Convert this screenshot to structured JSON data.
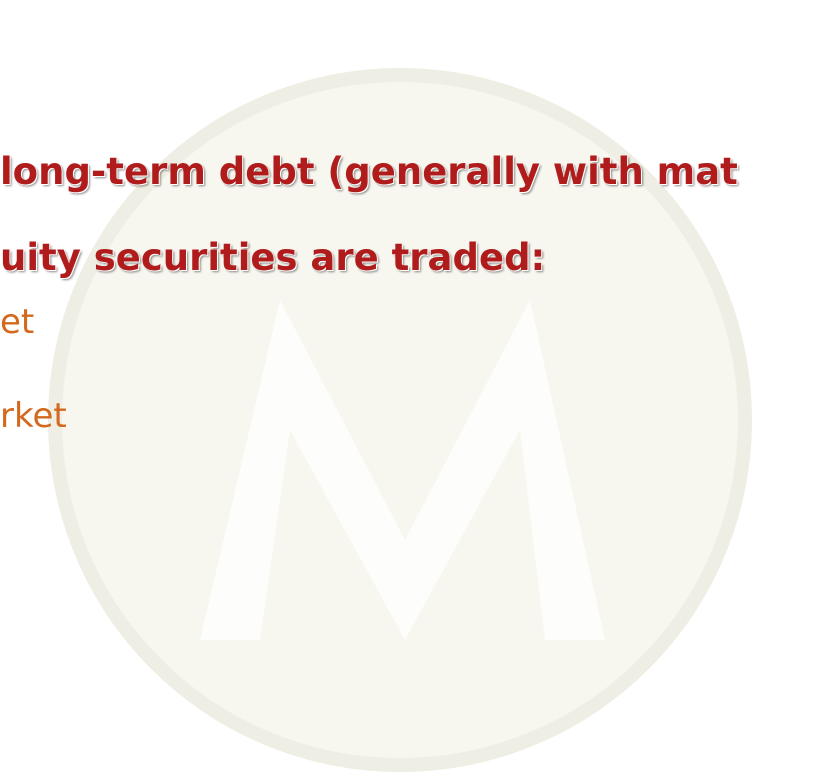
{
  "lines": [
    {
      "text": "long-term debt (generally with mat",
      "level": 1
    },
    {
      "text": "uity securities are traded:",
      "level": 1
    },
    {
      "text": "et",
      "level": 2
    },
    {
      "text": "rket",
      "level": 2
    }
  ]
}
